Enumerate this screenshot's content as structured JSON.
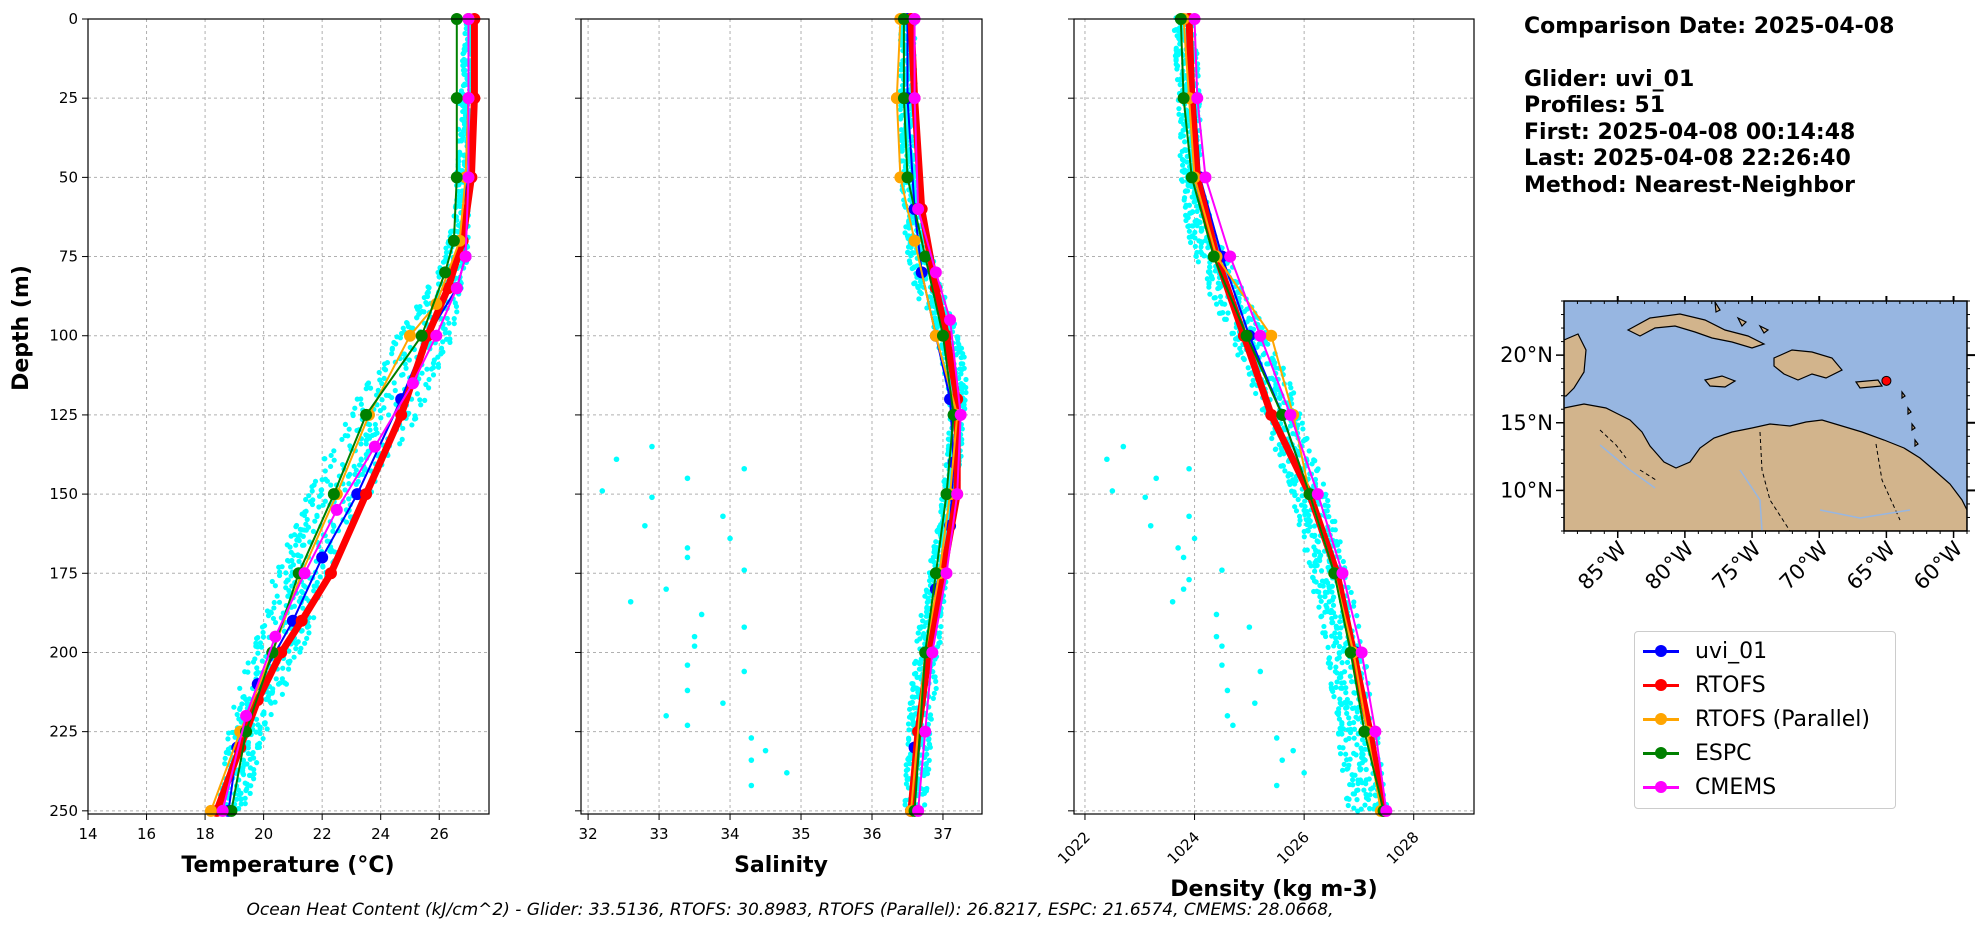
{
  "chart_data": [
    {
      "type": "line",
      "panel": "temperature",
      "xlabel": "Temperature (°C)",
      "ylabel": "Depth (m)",
      "xlim": [
        14,
        27.7
      ],
      "ylim": [
        251,
        0
      ],
      "xticks": [
        14,
        16,
        18,
        20,
        22,
        24,
        26
      ],
      "yticks": [
        0,
        25,
        50,
        75,
        100,
        125,
        150,
        175,
        200,
        225,
        250
      ],
      "grid": true,
      "scatter_profiles": {
        "color": "#00ffff",
        "bands": [
          [
            0,
            26.9,
            27.2
          ],
          [
            25,
            26.7,
            27.2
          ],
          [
            50,
            26.6,
            27.1
          ],
          [
            60,
            26.5,
            27.0
          ],
          [
            70,
            26.3,
            27.0
          ],
          [
            80,
            25.9,
            26.9
          ],
          [
            90,
            25.3,
            26.7
          ],
          [
            100,
            24.6,
            26.5
          ],
          [
            110,
            23.9,
            26.1
          ],
          [
            120,
            23.2,
            25.6
          ],
          [
            130,
            22.6,
            25.0
          ],
          [
            140,
            22.0,
            24.3
          ],
          [
            150,
            21.5,
            23.6
          ],
          [
            160,
            21.0,
            23.0
          ],
          [
            170,
            20.6,
            22.5
          ],
          [
            180,
            20.2,
            22.1
          ],
          [
            190,
            19.9,
            21.7
          ],
          [
            200,
            19.6,
            21.3
          ],
          [
            210,
            19.2,
            20.8
          ],
          [
            220,
            18.9,
            20.3
          ],
          [
            230,
            18.7,
            19.9
          ],
          [
            240,
            18.6,
            19.7
          ],
          [
            250,
            18.4,
            19.4
          ]
        ],
        "outliers": []
      },
      "series": [
        {
          "name": "uvi_01",
          "color": "#0000ff",
          "width": 2,
          "x": [
            27.0,
            27.0,
            26.9,
            26.9,
            26.6,
            25.6,
            24.7,
            23.2,
            22.0,
            21.0,
            19.8,
            19.1,
            18.8
          ],
          "y": [
            0,
            25,
            50,
            75,
            85,
            100,
            120,
            150,
            170,
            190,
            210,
            230,
            250
          ]
        },
        {
          "name": "RTOFS",
          "color": "#ff0000",
          "width": 7,
          "x": [
            27.2,
            27.2,
            27.1,
            26.8,
            26.3,
            25.6,
            24.7,
            23.5,
            22.3,
            21.3,
            20.6,
            19.8,
            19.2,
            18.4
          ],
          "y": [
            0,
            25,
            50,
            70,
            85,
            100,
            125,
            150,
            175,
            190,
            200,
            215,
            230,
            250
          ]
        },
        {
          "name": "RTOFS (Parallel)",
          "color": "#ffa500",
          "width": 2,
          "x": [
            27.0,
            27.0,
            26.9,
            26.7,
            25.9,
            25.0,
            23.6,
            22.5,
            21.3,
            20.3,
            19.2,
            18.2
          ],
          "y": [
            0,
            25,
            50,
            70,
            90,
            100,
            125,
            150,
            175,
            200,
            225,
            250
          ]
        },
        {
          "name": "ESPC",
          "color": "#008000",
          "width": 2,
          "x": [
            26.6,
            26.6,
            26.6,
            26.5,
            26.2,
            25.4,
            23.5,
            22.4,
            21.2,
            20.3,
            19.4,
            18.9
          ],
          "y": [
            0,
            25,
            50,
            70,
            80,
            100,
            125,
            150,
            175,
            200,
            225,
            250
          ]
        },
        {
          "name": "CMEMS",
          "color": "#ff00ff",
          "width": 2,
          "x": [
            27.0,
            27.0,
            27.0,
            26.9,
            26.6,
            25.9,
            25.1,
            23.8,
            22.5,
            21.4,
            20.4,
            19.4,
            18.6
          ],
          "y": [
            0,
            25,
            50,
            75,
            85,
            100,
            115,
            135,
            155,
            175,
            195,
            220,
            250
          ]
        }
      ]
    },
    {
      "type": "line",
      "panel": "salinity",
      "xlabel": "Salinity",
      "xlim": [
        31.9,
        37.55
      ],
      "ylim": [
        251,
        0
      ],
      "xticks": [
        32,
        33,
        34,
        35,
        36,
        37
      ],
      "yticks": [
        0,
        25,
        50,
        75,
        100,
        125,
        150,
        175,
        200,
        225,
        250
      ],
      "grid": true,
      "scatter_profiles": {
        "color": "#00ffff",
        "bands": [
          [
            0,
            36.4,
            36.6
          ],
          [
            50,
            36.4,
            36.62
          ],
          [
            65,
            36.45,
            36.7
          ],
          [
            75,
            36.5,
            36.85
          ],
          [
            85,
            36.6,
            37.0
          ],
          [
            95,
            36.8,
            37.15
          ],
          [
            105,
            36.95,
            37.3
          ],
          [
            115,
            37.05,
            37.35
          ],
          [
            125,
            37.1,
            37.3
          ],
          [
            140,
            37.05,
            37.25
          ],
          [
            155,
            36.95,
            37.15
          ],
          [
            175,
            36.8,
            37.05
          ],
          [
            200,
            36.6,
            36.95
          ],
          [
            225,
            36.5,
            36.85
          ],
          [
            250,
            36.45,
            36.75
          ]
        ],
        "outliers": [
          [
            32.9,
            135
          ],
          [
            32.4,
            139
          ],
          [
            34.2,
            142
          ],
          [
            33.4,
            145
          ],
          [
            32.2,
            149
          ],
          [
            32.9,
            151
          ],
          [
            33.9,
            157
          ],
          [
            32.8,
            160
          ],
          [
            34.0,
            164
          ],
          [
            33.4,
            167
          ],
          [
            33.4,
            170
          ],
          [
            34.2,
            174
          ],
          [
            33.1,
            180
          ],
          [
            32.6,
            184
          ],
          [
            33.6,
            188
          ],
          [
            34.2,
            192
          ],
          [
            33.5,
            195
          ],
          [
            33.5,
            198
          ],
          [
            33.4,
            204
          ],
          [
            34.2,
            206
          ],
          [
            33.4,
            212
          ],
          [
            33.9,
            216
          ],
          [
            33.1,
            220
          ],
          [
            33.4,
            223
          ],
          [
            34.3,
            227
          ],
          [
            34.5,
            231
          ],
          [
            34.3,
            234
          ],
          [
            34.8,
            238
          ],
          [
            34.3,
            242
          ]
        ]
      },
      "series": [
        {
          "name": "uvi_01",
          "color": "#0000ff",
          "width": 2,
          "x": [
            36.5,
            36.5,
            36.6,
            36.7,
            36.9,
            37.1,
            37.15,
            37.1,
            36.9,
            36.8,
            36.6,
            36.55
          ],
          "y": [
            0,
            25,
            60,
            80,
            100,
            120,
            140,
            160,
            180,
            200,
            230,
            250
          ]
        },
        {
          "name": "RTOFS",
          "color": "#ff0000",
          "width": 7,
          "x": [
            36.55,
            36.6,
            36.7,
            36.9,
            37.05,
            37.2,
            37.2,
            37.0,
            36.8,
            36.65,
            36.55
          ],
          "y": [
            0,
            25,
            60,
            85,
            100,
            120,
            150,
            175,
            200,
            225,
            250
          ]
        },
        {
          "name": "RTOFS (Parallel)",
          "color": "#ffa500",
          "width": 2,
          "x": [
            36.4,
            36.35,
            36.4,
            36.6,
            36.9,
            37.2,
            37.1,
            36.95,
            36.75,
            36.55
          ],
          "y": [
            0,
            25,
            50,
            70,
            100,
            125,
            150,
            175,
            200,
            250
          ]
        },
        {
          "name": "ESPC",
          "color": "#008000",
          "width": 2,
          "x": [
            36.45,
            36.45,
            36.5,
            36.75,
            37.0,
            37.15,
            37.05,
            36.9,
            36.75,
            36.6
          ],
          "y": [
            0,
            25,
            50,
            75,
            100,
            125,
            150,
            175,
            200,
            250
          ]
        },
        {
          "name": "CMEMS",
          "color": "#ff00ff",
          "width": 2,
          "x": [
            36.6,
            36.6,
            36.65,
            36.9,
            37.1,
            37.25,
            37.2,
            37.05,
            36.85,
            36.75,
            36.65
          ],
          "y": [
            0,
            25,
            60,
            80,
            95,
            125,
            150,
            175,
            200,
            225,
            250
          ]
        }
      ]
    },
    {
      "type": "line",
      "panel": "density",
      "xlabel": "Density (kg m-3)",
      "xlim": [
        1021.8,
        1029.1
      ],
      "ylim": [
        251,
        0
      ],
      "xticks": [
        1022,
        1024,
        1026,
        1028
      ],
      "yticks": [
        0,
        25,
        50,
        75,
        100,
        125,
        150,
        175,
        200,
        225,
        250
      ],
      "grid": true,
      "scatter_profiles": {
        "color": "#00ffff",
        "bands": [
          [
            0,
            1023.6,
            1024.0
          ],
          [
            25,
            1023.7,
            1024.1
          ],
          [
            50,
            1023.75,
            1024.15
          ],
          [
            60,
            1023.8,
            1024.25
          ],
          [
            70,
            1023.9,
            1024.45
          ],
          [
            80,
            1024.1,
            1024.75
          ],
          [
            90,
            1024.35,
            1025.05
          ],
          [
            100,
            1024.6,
            1025.35
          ],
          [
            115,
            1025.0,
            1025.75
          ],
          [
            130,
            1025.35,
            1026.05
          ],
          [
            150,
            1025.75,
            1026.45
          ],
          [
            175,
            1026.1,
            1026.8
          ],
          [
            200,
            1026.4,
            1027.1
          ],
          [
            225,
            1026.6,
            1027.35
          ],
          [
            250,
            1026.8,
            1027.55
          ]
        ],
        "outliers": [
          [
            1022.7,
            135
          ],
          [
            1022.4,
            139
          ],
          [
            1023.9,
            142
          ],
          [
            1023.3,
            145
          ],
          [
            1022.5,
            149
          ],
          [
            1023.1,
            151
          ],
          [
            1023.9,
            157
          ],
          [
            1023.2,
            160
          ],
          [
            1024.0,
            164
          ],
          [
            1023.7,
            167
          ],
          [
            1023.8,
            170
          ],
          [
            1024.5,
            174
          ],
          [
            1023.9,
            177
          ],
          [
            1023.8,
            180
          ],
          [
            1023.6,
            184
          ],
          [
            1024.4,
            188
          ],
          [
            1025.0,
            192
          ],
          [
            1024.4,
            195
          ],
          [
            1024.5,
            198
          ],
          [
            1024.5,
            204
          ],
          [
            1025.2,
            206
          ],
          [
            1024.6,
            212
          ],
          [
            1025.1,
            216
          ],
          [
            1024.6,
            220
          ],
          [
            1024.7,
            223
          ],
          [
            1025.5,
            227
          ],
          [
            1025.8,
            231
          ],
          [
            1025.6,
            234
          ],
          [
            1026.0,
            238
          ],
          [
            1025.5,
            242
          ]
        ]
      },
      "series": [
        {
          "name": "uvi_01",
          "color": "#0000ff",
          "width": 2,
          "x": [
            1023.9,
            1024.0,
            1024.1,
            1024.5,
            1025.0,
            1025.6,
            1026.1,
            1026.6,
            1026.95,
            1027.2,
            1027.45
          ],
          "y": [
            0,
            25,
            50,
            75,
            100,
            125,
            150,
            175,
            200,
            225,
            250
          ]
        },
        {
          "name": "RTOFS",
          "color": "#ff0000",
          "width": 7,
          "x": [
            1023.9,
            1023.95,
            1024.05,
            1024.4,
            1024.9,
            1025.4,
            1026.1,
            1026.6,
            1026.9,
            1027.2,
            1027.45
          ],
          "y": [
            0,
            25,
            50,
            75,
            100,
            125,
            150,
            175,
            200,
            225,
            250
          ]
        },
        {
          "name": "RTOFS (Parallel)",
          "color": "#ffa500",
          "width": 2,
          "x": [
            1023.8,
            1023.9,
            1024.0,
            1024.4,
            1025.4,
            1025.8,
            1026.1,
            1026.55,
            1026.9,
            1027.15,
            1027.4
          ],
          "y": [
            0,
            25,
            50,
            75,
            100,
            125,
            150,
            175,
            200,
            225,
            250
          ]
        },
        {
          "name": "ESPC",
          "color": "#008000",
          "width": 2,
          "x": [
            1023.75,
            1023.8,
            1023.95,
            1024.35,
            1024.95,
            1025.6,
            1026.1,
            1026.55,
            1026.85,
            1027.1,
            1027.45
          ],
          "y": [
            0,
            25,
            50,
            75,
            100,
            125,
            150,
            175,
            200,
            225,
            250
          ]
        },
        {
          "name": "CMEMS",
          "color": "#ff00ff",
          "width": 2,
          "x": [
            1024.0,
            1024.05,
            1024.2,
            1024.65,
            1025.2,
            1025.75,
            1026.25,
            1026.7,
            1027.05,
            1027.3,
            1027.5
          ],
          "y": [
            0,
            25,
            50,
            75,
            100,
            125,
            150,
            175,
            200,
            225,
            250
          ]
        }
      ]
    }
  ],
  "info": {
    "comparison_date": "Comparison Date: 2025-04-08",
    "glider": "Glider: uvi_01",
    "profiles": "Profiles: 51",
    "first": "First: 2025-04-08 00:14:48",
    "last": "Last: 2025-04-08 22:26:40",
    "method": "Method: Nearest-Neighbor"
  },
  "map": {
    "lat_ticks": [
      "20°N",
      "15°N",
      "10°N"
    ],
    "lon_ticks": [
      "85°W",
      "80°W",
      "75°W",
      "70°W",
      "65°W",
      "60°W"
    ],
    "ocean_color": "#97b6e1",
    "land_color": "#d2b48c",
    "glider_location": {
      "lon": -65.0,
      "lat": 18.1,
      "color": "#ff0000"
    }
  },
  "legend": {
    "items": [
      {
        "label": "uvi_01",
        "color": "#0000ff"
      },
      {
        "label": "RTOFS",
        "color": "#ff0000"
      },
      {
        "label": "RTOFS (Parallel)",
        "color": "#ffa500"
      },
      {
        "label": "ESPC",
        "color": "#008000"
      },
      {
        "label": "CMEMS",
        "color": "#ff00ff"
      }
    ]
  },
  "footer": "Ocean Heat Content (kJ/cm^2) - Glider: 33.5136,  RTOFS: 30.8983,  RTOFS (Parallel): 26.8217,  ESPC: 21.6574,  CMEMS: 28.0668,"
}
